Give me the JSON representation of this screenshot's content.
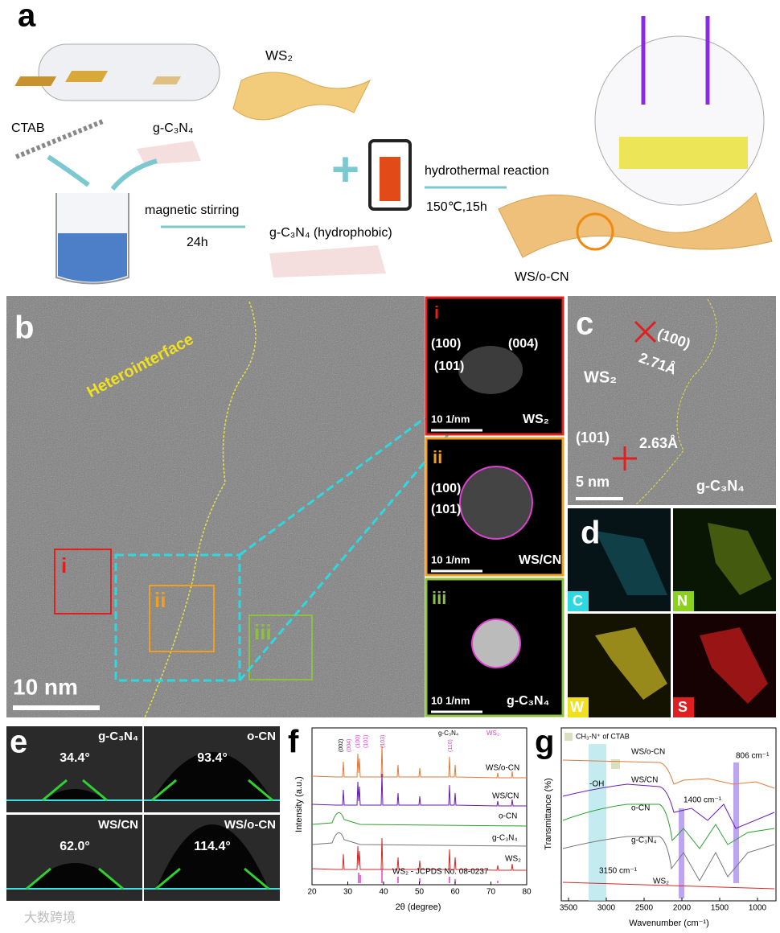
{
  "panel_a": {
    "label": "a",
    "ws2": "WS₂",
    "ctab": "CTAB",
    "gcn": "g-C₃N₄",
    "stirring": "magnetic stirring",
    "stir_time": "24h",
    "gcn_hydrophobic": "g-C₃N₄ (hydrophobic)",
    "reaction": "hydrothermal reaction",
    "conditions": "150℃,15h",
    "product": "WS/o-CN"
  },
  "panel_b": {
    "label": "b",
    "interface": "Heterointerface",
    "regions": [
      "i",
      "ii",
      "iii"
    ],
    "scale": "10 nm"
  },
  "insets": [
    {
      "label": "i",
      "planes": [
        "(100)",
        "(004)",
        "(101)"
      ],
      "scale": "10 1/nm",
      "name": "WS₂"
    },
    {
      "label": "ii",
      "planes": [
        "(100)",
        "(101)"
      ],
      "scale": "10 1/nm",
      "name": "WS/CN"
    },
    {
      "label": "iii",
      "planes": [],
      "scale": "10 1/nm",
      "name": "g-C₃N₄"
    }
  ],
  "panel_c": {
    "label": "c",
    "plane1": "(100)",
    "spacing1": "2.71Å",
    "ws2": "WS₂",
    "plane2": "(101)",
    "spacing2": "2.63Å",
    "scale": "5 nm",
    "gcn": "g-C₃N₄"
  },
  "panel_d": {
    "label": "d",
    "elements": [
      "C",
      "N",
      "W",
      "S"
    ]
  },
  "panel_e": {
    "label": "e",
    "samples": [
      {
        "name": "g-C₃N₄",
        "angle": "34.4°"
      },
      {
        "name": "o-CN",
        "angle": "93.4°"
      },
      {
        "name": "WS/CN",
        "angle": "62.0°"
      },
      {
        "name": "WS/o-CN",
        "angle": "114.4°"
      }
    ]
  },
  "panel_f": {
    "label": "f",
    "legend": [
      "g-C₃N₄",
      "WS₂"
    ],
    "peaks": [
      "(002)",
      "(004)",
      "(100)",
      "(101)",
      "(103)",
      "(110)"
    ],
    "curves": [
      "WS/o-CN",
      "WS/CN",
      "o-CN",
      "g-C₃N₄",
      "WS₂",
      "WS₂ - JCPDS No. 08-0237"
    ],
    "x_label": "2θ (degree)",
    "y_label": "Intensity (a.u.)",
    "xticks": [
      20,
      30,
      40,
      50,
      60,
      70,
      80
    ]
  },
  "panel_g": {
    "label": "g",
    "legend": "CH₃-N⁺ of CTAB",
    "curves": [
      "WS/o-CN",
      "WS/CN",
      "o-CN",
      "g-C₃N₄",
      "WS₂"
    ],
    "annotations": [
      "806 cm⁻¹",
      "-OH",
      "1400 cm⁻¹",
      "3150 cm⁻¹"
    ],
    "x_label": "Wavenumber (cm⁻¹)",
    "y_label": "Transmittance (%)",
    "xticks": [
      3500,
      3000,
      2500,
      2000,
      1500,
      1000
    ]
  },
  "watermark": "大数跨境"
}
